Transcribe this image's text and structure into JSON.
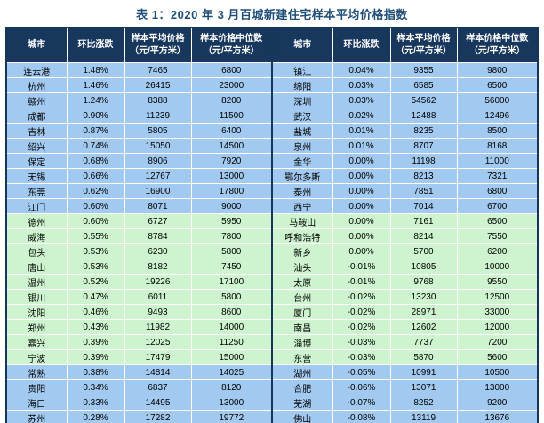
{
  "title": "表 1：2020 年 3 月百城新建住宅样本平均价格指数",
  "colors": {
    "title_color": "#1F4E79",
    "header_bg": "#17375D",
    "header_text": "#FFFFFF",
    "row_blue": "#A2C9F0",
    "row_green": "#CDF4CE",
    "border_dark": "#14365A",
    "grid_line": "#FFFFFF"
  },
  "header": {
    "city": "城市",
    "change": "环比涨跌",
    "avg_l1": "样本平均价格",
    "avg_l2": "（元/平方米）",
    "med_l1": "样本价格中位数",
    "med_l2": "（元/平方米）"
  },
  "rows": [
    {
      "left": {
        "city": "连云港",
        "change": "1.48%",
        "avg": "7465",
        "median": "6800",
        "band": "blue"
      },
      "right": {
        "city": "镇江",
        "change": "0.04%",
        "avg": "9355",
        "median": "9800",
        "band": "blue"
      }
    },
    {
      "left": {
        "city": "杭州",
        "change": "1.46%",
        "avg": "26415",
        "median": "23000",
        "band": "blue"
      },
      "right": {
        "city": "绵阳",
        "change": "0.03%",
        "avg": "6585",
        "median": "6500",
        "band": "blue"
      }
    },
    {
      "left": {
        "city": "赣州",
        "change": "1.24%",
        "avg": "8388",
        "median": "8200",
        "band": "blue"
      },
      "right": {
        "city": "深圳",
        "change": "0.03%",
        "avg": "54562",
        "median": "56000",
        "band": "blue"
      }
    },
    {
      "left": {
        "city": "成都",
        "change": "0.90%",
        "avg": "11239",
        "median": "11500",
        "band": "blue"
      },
      "right": {
        "city": "武汉",
        "change": "0.02%",
        "avg": "12488",
        "median": "12496",
        "band": "blue"
      }
    },
    {
      "left": {
        "city": "吉林",
        "change": "0.87%",
        "avg": "5805",
        "median": "6400",
        "band": "blue"
      },
      "right": {
        "city": "盐城",
        "change": "0.01%",
        "avg": "8235",
        "median": "8500",
        "band": "blue"
      }
    },
    {
      "left": {
        "city": "绍兴",
        "change": "0.74%",
        "avg": "15050",
        "median": "14500",
        "band": "blue"
      },
      "right": {
        "city": "泉州",
        "change": "0.01%",
        "avg": "8707",
        "median": "8168",
        "band": "blue"
      }
    },
    {
      "left": {
        "city": "保定",
        "change": "0.68%",
        "avg": "8906",
        "median": "7920",
        "band": "blue"
      },
      "right": {
        "city": "金华",
        "change": "0.00%",
        "avg": "11198",
        "median": "11000",
        "band": "blue"
      }
    },
    {
      "left": {
        "city": "无锡",
        "change": "0.66%",
        "avg": "12767",
        "median": "13000",
        "band": "blue"
      },
      "right": {
        "city": "鄂尔多斯",
        "change": "0.00%",
        "avg": "8213",
        "median": "7321",
        "band": "blue"
      }
    },
    {
      "left": {
        "city": "东莞",
        "change": "0.62%",
        "avg": "16900",
        "median": "17800",
        "band": "blue"
      },
      "right": {
        "city": "泰州",
        "change": "0.00%",
        "avg": "7851",
        "median": "6800",
        "band": "blue"
      }
    },
    {
      "left": {
        "city": "江门",
        "change": "0.60%",
        "avg": "8071",
        "median": "9000",
        "band": "blue"
      },
      "right": {
        "city": "西宁",
        "change": "0.00%",
        "avg": "7014",
        "median": "6700",
        "band": "blue"
      }
    },
    {
      "left": {
        "city": "德州",
        "change": "0.60%",
        "avg": "6727",
        "median": "5950",
        "band": "green"
      },
      "right": {
        "city": "马鞍山",
        "change": "0.00%",
        "avg": "7161",
        "median": "6500",
        "band": "green"
      }
    },
    {
      "left": {
        "city": "威海",
        "change": "0.55%",
        "avg": "8784",
        "median": "7800",
        "band": "green"
      },
      "right": {
        "city": "呼和浩特",
        "change": "0.00%",
        "avg": "8214",
        "median": "7550",
        "band": "green"
      }
    },
    {
      "left": {
        "city": "包头",
        "change": "0.53%",
        "avg": "6230",
        "median": "5800",
        "band": "green"
      },
      "right": {
        "city": "新乡",
        "change": "0.00%",
        "avg": "5700",
        "median": "6200",
        "band": "green"
      }
    },
    {
      "left": {
        "city": "唐山",
        "change": "0.53%",
        "avg": "8182",
        "median": "7450",
        "band": "green"
      },
      "right": {
        "city": "汕头",
        "change": "-0.01%",
        "avg": "10805",
        "median": "10000",
        "band": "green"
      }
    },
    {
      "left": {
        "city": "温州",
        "change": "0.52%",
        "avg": "19226",
        "median": "17100",
        "band": "green"
      },
      "right": {
        "city": "太原",
        "change": "-0.01%",
        "avg": "9768",
        "median": "9550",
        "band": "green"
      }
    },
    {
      "left": {
        "city": "银川",
        "change": "0.47%",
        "avg": "6011",
        "median": "5800",
        "band": "green"
      },
      "right": {
        "city": "台州",
        "change": "-0.02%",
        "avg": "13230",
        "median": "12500",
        "band": "green"
      }
    },
    {
      "left": {
        "city": "沈阳",
        "change": "0.46%",
        "avg": "9493",
        "median": "8600",
        "band": "green"
      },
      "right": {
        "city": "厦门",
        "change": "-0.02%",
        "avg": "28971",
        "median": "33000",
        "band": "green"
      }
    },
    {
      "left": {
        "city": "郑州",
        "change": "0.43%",
        "avg": "11982",
        "median": "14000",
        "band": "green"
      },
      "right": {
        "city": "南昌",
        "change": "-0.02%",
        "avg": "12602",
        "median": "12000",
        "band": "green"
      }
    },
    {
      "left": {
        "city": "嘉兴",
        "change": "0.39%",
        "avg": "12025",
        "median": "11250",
        "band": "green"
      },
      "right": {
        "city": "淄博",
        "change": "-0.03%",
        "avg": "7737",
        "median": "7200",
        "band": "green"
      }
    },
    {
      "left": {
        "city": "宁波",
        "change": "0.39%",
        "avg": "17479",
        "median": "15000",
        "band": "green"
      },
      "right": {
        "city": "东营",
        "change": "-0.03%",
        "avg": "5870",
        "median": "5600",
        "band": "green"
      }
    },
    {
      "left": {
        "city": "常熟",
        "change": "0.38%",
        "avg": "14814",
        "median": "14025",
        "band": "blue"
      },
      "right": {
        "city": "湖州",
        "change": "-0.05%",
        "avg": "10991",
        "median": "10500",
        "band": "blue"
      }
    },
    {
      "left": {
        "city": "贵阳",
        "change": "0.34%",
        "avg": "6837",
        "median": "8120",
        "band": "blue"
      },
      "right": {
        "city": "合肥",
        "change": "-0.06%",
        "avg": "13071",
        "median": "13000",
        "band": "blue"
      }
    },
    {
      "left": {
        "city": "海口",
        "change": "0.33%",
        "avg": "14495",
        "median": "13000",
        "band": "blue"
      },
      "right": {
        "city": "芜湖",
        "change": "-0.07%",
        "avg": "8252",
        "median": "9200",
        "band": "blue"
      }
    },
    {
      "left": {
        "city": "苏州",
        "change": "0.28%",
        "avg": "17282",
        "median": "19772",
        "band": "blue"
      },
      "right": {
        "city": "佛山",
        "change": "-0.08%",
        "avg": "13119",
        "median": "13676",
        "band": "blue"
      }
    }
  ]
}
